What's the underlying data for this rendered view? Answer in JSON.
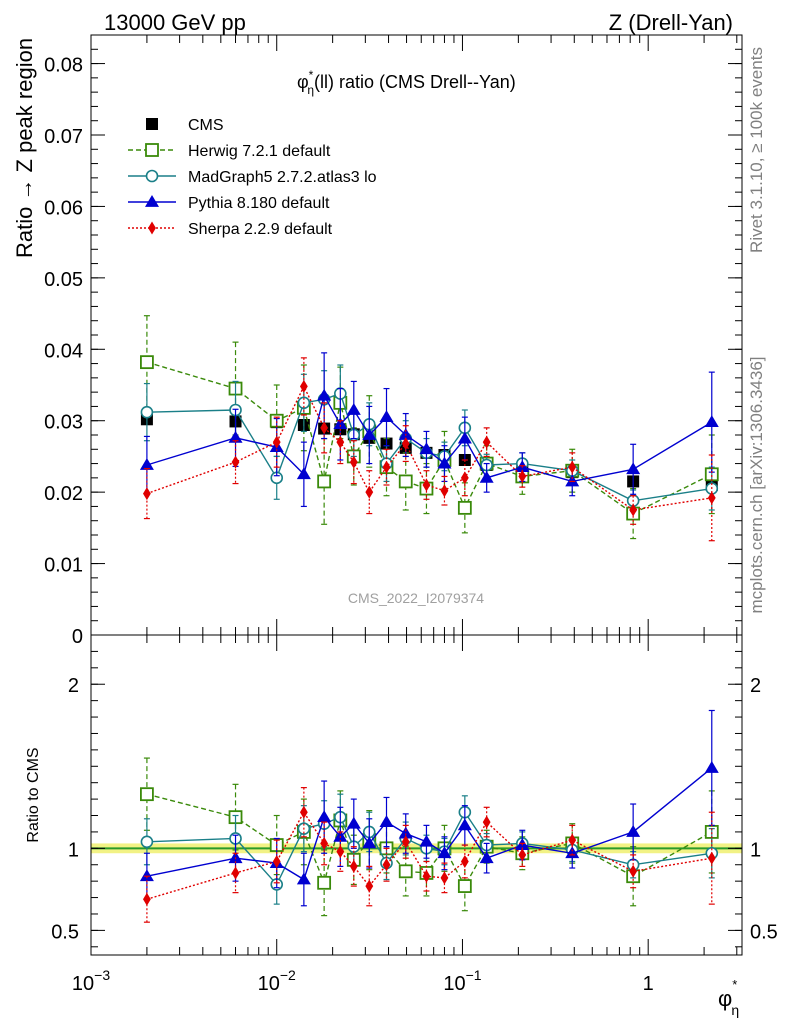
{
  "header": {
    "left": "13000 GeV pp",
    "right": "Z (Drell-Yan)"
  },
  "side_labels": {
    "rivet": "Rivet 3.1.10, ≥ 100k events",
    "mcplots": "mcplots.cern.ch [arXiv:1306.3436]"
  },
  "chart_data": [
    {
      "type": "line",
      "title": "φ*η(ll) ratio (CMS Drell--Yan)",
      "title_parts": {
        "pre": "φ",
        "sup": "*",
        "sub": "η",
        "post": "(ll) ratio (CMS Drell--Yan)"
      },
      "ylabel": "Ratio → Z peak region",
      "watermark": "CMS_2022_I2079374",
      "xscale": "log",
      "xlim": [
        0.001,
        3.2
      ],
      "ylim": [
        0,
        0.084
      ],
      "yticks": [
        0,
        0.01,
        0.02,
        0.03,
        0.04,
        0.05,
        0.06,
        0.07,
        0.08
      ],
      "ytick_labels": [
        "0",
        "0.01",
        "0.02",
        "0.03",
        "0.04",
        "0.05",
        "0.06",
        "0.07",
        "0.08"
      ],
      "x": [
        0.002,
        0.006,
        0.01,
        0.014,
        0.018,
        0.022,
        0.026,
        0.0315,
        0.039,
        0.0495,
        0.064,
        0.08,
        0.103,
        0.135,
        0.21,
        0.39,
        0.83,
        2.2
      ],
      "legend_position": "top-left",
      "series": [
        {
          "name": "CMS",
          "color": "#000000",
          "marker": "square-filled",
          "style": "points",
          "values": [
            0.0302,
            0.0299,
            0.0298,
            0.0294,
            0.0289,
            0.0288,
            0.0281,
            0.0276,
            0.0268,
            0.0262,
            0.0255,
            0.0252,
            0.0245,
            0.0238,
            0.0232,
            0.0228,
            0.0215,
            0.021
          ],
          "errors": [
            0.0003,
            0.0003,
            0.0003,
            0.0003,
            0.0003,
            0.0003,
            0.0003,
            0.0003,
            0.0003,
            0.0003,
            0.0003,
            0.0003,
            0.0003,
            0.0003,
            0.0003,
            0.0003,
            0.0003,
            0.0003
          ]
        },
        {
          "name": "Herwig 7.2.1 default",
          "color": "#3a8a0a",
          "marker": "square-open",
          "style": "dashed",
          "values": [
            0.0382,
            0.0345,
            0.03,
            0.0318,
            0.0215,
            0.0325,
            0.025,
            0.0285,
            0.0235,
            0.0215,
            0.0205,
            0.0245,
            0.0178,
            0.024,
            0.0222,
            0.023,
            0.017,
            0.0225
          ],
          "errors": [
            0.0065,
            0.0065,
            0.005,
            0.006,
            0.006,
            0.005,
            0.004,
            0.005,
            0.004,
            0.004,
            0.0035,
            0.004,
            0.0035,
            0.0025,
            0.0025,
            0.003,
            0.0035,
            0.0055
          ]
        },
        {
          "name": "MadGraph5 2.7.2.atlas3 lo",
          "color": "#1a7f88",
          "marker": "circle-open",
          "style": "solid",
          "values": [
            0.0312,
            0.0315,
            0.022,
            0.0325,
            0.033,
            0.0338,
            0.028,
            0.0295,
            0.024,
            0.0275,
            0.0255,
            0.025,
            0.029,
            0.0238,
            0.024,
            0.023,
            0.0188,
            0.0205
          ],
          "errors": [
            0.004,
            0.004,
            0.003,
            0.004,
            0.004,
            0.004,
            0.003,
            0.003,
            0.0025,
            0.0025,
            0.002,
            0.002,
            0.0025,
            0.0015,
            0.0015,
            0.0015,
            0.0015,
            0.003
          ]
        },
        {
          "name": "Pythia 8.180 default",
          "color": "#0000d0",
          "marker": "triangle-filled",
          "style": "solid",
          "values": [
            0.0238,
            0.0276,
            0.0263,
            0.0225,
            0.0335,
            0.0295,
            0.0315,
            0.028,
            0.0305,
            0.028,
            0.026,
            0.024,
            0.0275,
            0.022,
            0.0235,
            0.0215,
            0.0232,
            0.0298
          ],
          "errors": [
            0.004,
            0.004,
            0.004,
            0.0045,
            0.006,
            0.005,
            0.004,
            0.004,
            0.004,
            0.003,
            0.0025,
            0.0025,
            0.003,
            0.002,
            0.002,
            0.002,
            0.0035,
            0.007
          ]
        },
        {
          "name": "Sherpa 2.2.9 default",
          "color": "#e00000",
          "marker": "diamond-filled",
          "style": "dotted",
          "values": [
            0.0198,
            0.0242,
            0.027,
            0.0348,
            0.029,
            0.027,
            0.0242,
            0.02,
            0.0235,
            0.0268,
            0.021,
            0.0202,
            0.022,
            0.027,
            0.0222,
            0.0235,
            0.0175,
            0.0192
          ],
          "errors": [
            0.0035,
            0.003,
            0.0035,
            0.004,
            0.0035,
            0.003,
            0.003,
            0.003,
            0.0025,
            0.0025,
            0.002,
            0.002,
            0.0025,
            0.002,
            0.0015,
            0.002,
            0.002,
            0.006
          ]
        }
      ]
    },
    {
      "type": "line",
      "ylabel": "Ratio to CMS",
      "xlabel": "φ*η",
      "xlabel_parts": {
        "pre": "φ",
        "sup": "*",
        "sub": "η"
      },
      "xscale": "log",
      "xlim": [
        0.001,
        3.2
      ],
      "ylim": [
        0.35,
        2.3
      ],
      "yticks": [
        0.5,
        1,
        2
      ],
      "ytick_labels": [
        "0.5",
        "1",
        "2"
      ],
      "xticks": [
        0.001,
        0.01,
        0.1,
        1
      ],
      "xtick_labels": [
        {
          "base": "10",
          "exp": "−3"
        },
        {
          "base": "10",
          "exp": "−2"
        },
        {
          "base": "10",
          "exp": "−1"
        },
        {
          "base": "1",
          "exp": ""
        }
      ],
      "reference_band": {
        "low": 0.97,
        "high": 1.03,
        "color": "#f0f070"
      },
      "reference_line": {
        "value": 1,
        "color": "#2a9a2a"
      },
      "x": [
        0.002,
        0.006,
        0.01,
        0.014,
        0.018,
        0.022,
        0.026,
        0.0315,
        0.039,
        0.0495,
        0.064,
        0.08,
        0.103,
        0.135,
        0.21,
        0.39,
        0.83,
        2.2
      ],
      "series": [
        {
          "name": "Herwig 7.2.1 default",
          "color": "#3a8a0a",
          "marker": "square-open",
          "style": "dashed",
          "values": [
            1.33,
            1.19,
            1.02,
            1.1,
            0.79,
            1.17,
            0.93,
            1.05,
            1.0,
            0.86,
            0.85,
            1.0,
            0.77,
            1.01,
            0.97,
            1.03,
            0.83,
            1.1
          ],
          "errors": [
            0.22,
            0.2,
            0.18,
            0.2,
            0.2,
            0.18,
            0.15,
            0.18,
            0.15,
            0.15,
            0.14,
            0.14,
            0.15,
            0.1,
            0.1,
            0.12,
            0.18,
            0.25
          ]
        },
        {
          "name": "MadGraph5 2.7.2.atlas3 lo",
          "color": "#1a7f88",
          "marker": "circle-open",
          "style": "solid",
          "values": [
            1.04,
            1.06,
            0.78,
            1.12,
            1.15,
            1.19,
            1.01,
            1.1,
            0.91,
            1.06,
            1.0,
            0.98,
            1.22,
            1.02,
            1.03,
            0.99,
            0.9,
            0.97
          ],
          "errors": [
            0.14,
            0.14,
            0.12,
            0.14,
            0.14,
            0.14,
            0.12,
            0.12,
            0.1,
            0.1,
            0.08,
            0.08,
            0.1,
            0.07,
            0.07,
            0.07,
            0.08,
            0.15
          ]
        },
        {
          "name": "Pythia 8.180 default",
          "color": "#0000d0",
          "marker": "triangle-filled",
          "style": "solid",
          "values": [
            0.83,
            0.94,
            0.91,
            0.81,
            1.19,
            1.07,
            1.15,
            1.03,
            1.16,
            1.09,
            1.04,
            0.97,
            1.14,
            0.94,
            1.02,
            0.97,
            1.1,
            1.49
          ],
          "errors": [
            0.14,
            0.14,
            0.15,
            0.16,
            0.22,
            0.18,
            0.15,
            0.15,
            0.15,
            0.12,
            0.1,
            0.1,
            0.12,
            0.09,
            0.09,
            0.09,
            0.17,
            0.35
          ]
        },
        {
          "name": "Sherpa 2.2.9 default",
          "color": "#e00000",
          "marker": "diamond-filled",
          "style": "dotted",
          "values": [
            0.69,
            0.85,
            0.92,
            1.22,
            1.03,
            0.98,
            0.89,
            0.77,
            0.9,
            1.04,
            0.83,
            0.82,
            0.92,
            1.16,
            0.96,
            1.05,
            0.86,
            0.94
          ],
          "errors": [
            0.14,
            0.12,
            0.13,
            0.15,
            0.13,
            0.12,
            0.12,
            0.12,
            0.1,
            0.1,
            0.09,
            0.09,
            0.1,
            0.09,
            0.07,
            0.09,
            0.1,
            0.28
          ]
        }
      ]
    }
  ]
}
